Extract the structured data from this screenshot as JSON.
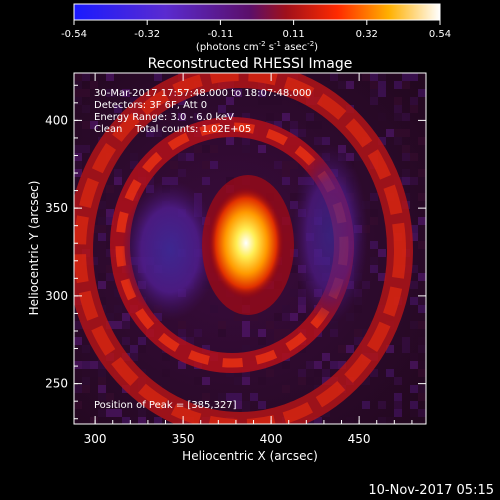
{
  "colorbar": {
    "ticks": [
      "-0.54",
      "-0.32",
      "-0.11",
      "0.11",
      "0.32",
      "0.54"
    ],
    "unit_label": "(photons cm",
    "unit_sup1": "-2",
    "unit_mid": " s",
    "unit_sup2": "-1",
    "unit_mid2": " asec",
    "unit_sup3": "-2",
    "unit_end": ")"
  },
  "annotations": {
    "time_range": "30-Mar-2017 17:57:48.000 to 18:07:48.000",
    "detectors": "Detectors: 3F 6F, Att 0",
    "energy": "Energy Range: 3.0 - 6.0 keV",
    "clean": "Clean    Total counts: 1.02E+05",
    "peak": "Position of Peak = [385,327]"
  },
  "footer": {
    "timestamp": "10-Nov-2017 05:15"
  },
  "chart_data": {
    "type": "heatmap",
    "title": "Reconstructed RHESSI Image",
    "xlabel": "Heliocentric X (arcsec)",
    "ylabel": "Heliocentric Y (arcsec)",
    "xlim": [
      288,
      488
    ],
    "ylim": [
      227,
      427
    ],
    "x_ticks": [
      300,
      350,
      400,
      450
    ],
    "y_ticks": [
      250,
      300,
      350,
      400
    ],
    "colorbar_range": [
      -0.54,
      0.54
    ],
    "colormap": "blue-purple-red-yellow-white",
    "peak_position": [
      385,
      327
    ],
    "grid": false
  }
}
